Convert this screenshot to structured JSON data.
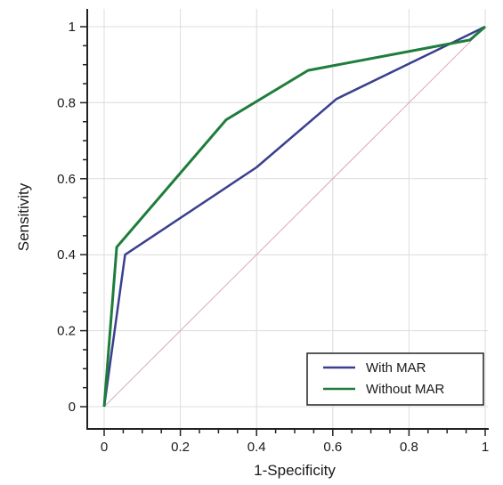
{
  "chart_data": {
    "type": "line",
    "xlabel": "1-Specificity",
    "ylabel": "Sensitivity",
    "xlim": [
      0,
      1
    ],
    "ylim": [
      0,
      1
    ],
    "x_ticks": [
      "0",
      "0.2",
      "0.4",
      "0.6",
      "0.8",
      "1"
    ],
    "y_ticks": [
      "0",
      "0.2",
      "0.4",
      "0.6",
      "0.8",
      "1"
    ],
    "grid": true,
    "legend_position": "bottom-right",
    "reference_line": {
      "x": [
        0,
        1
      ],
      "y": [
        0,
        1
      ],
      "color": "#d9a9b4"
    },
    "series": [
      {
        "name": "With MAR",
        "color": "#3a3f8f",
        "x": [
          0,
          0.055,
          0.4,
          0.61,
          1
        ],
        "y": [
          0,
          0.4,
          0.63,
          0.81,
          1
        ]
      },
      {
        "name": "Without MAR",
        "color": "#1e7d3c",
        "x": [
          0,
          0.033,
          0.32,
          0.535,
          0.96,
          1
        ],
        "y": [
          0,
          0.42,
          0.755,
          0.885,
          0.965,
          1
        ]
      }
    ]
  }
}
